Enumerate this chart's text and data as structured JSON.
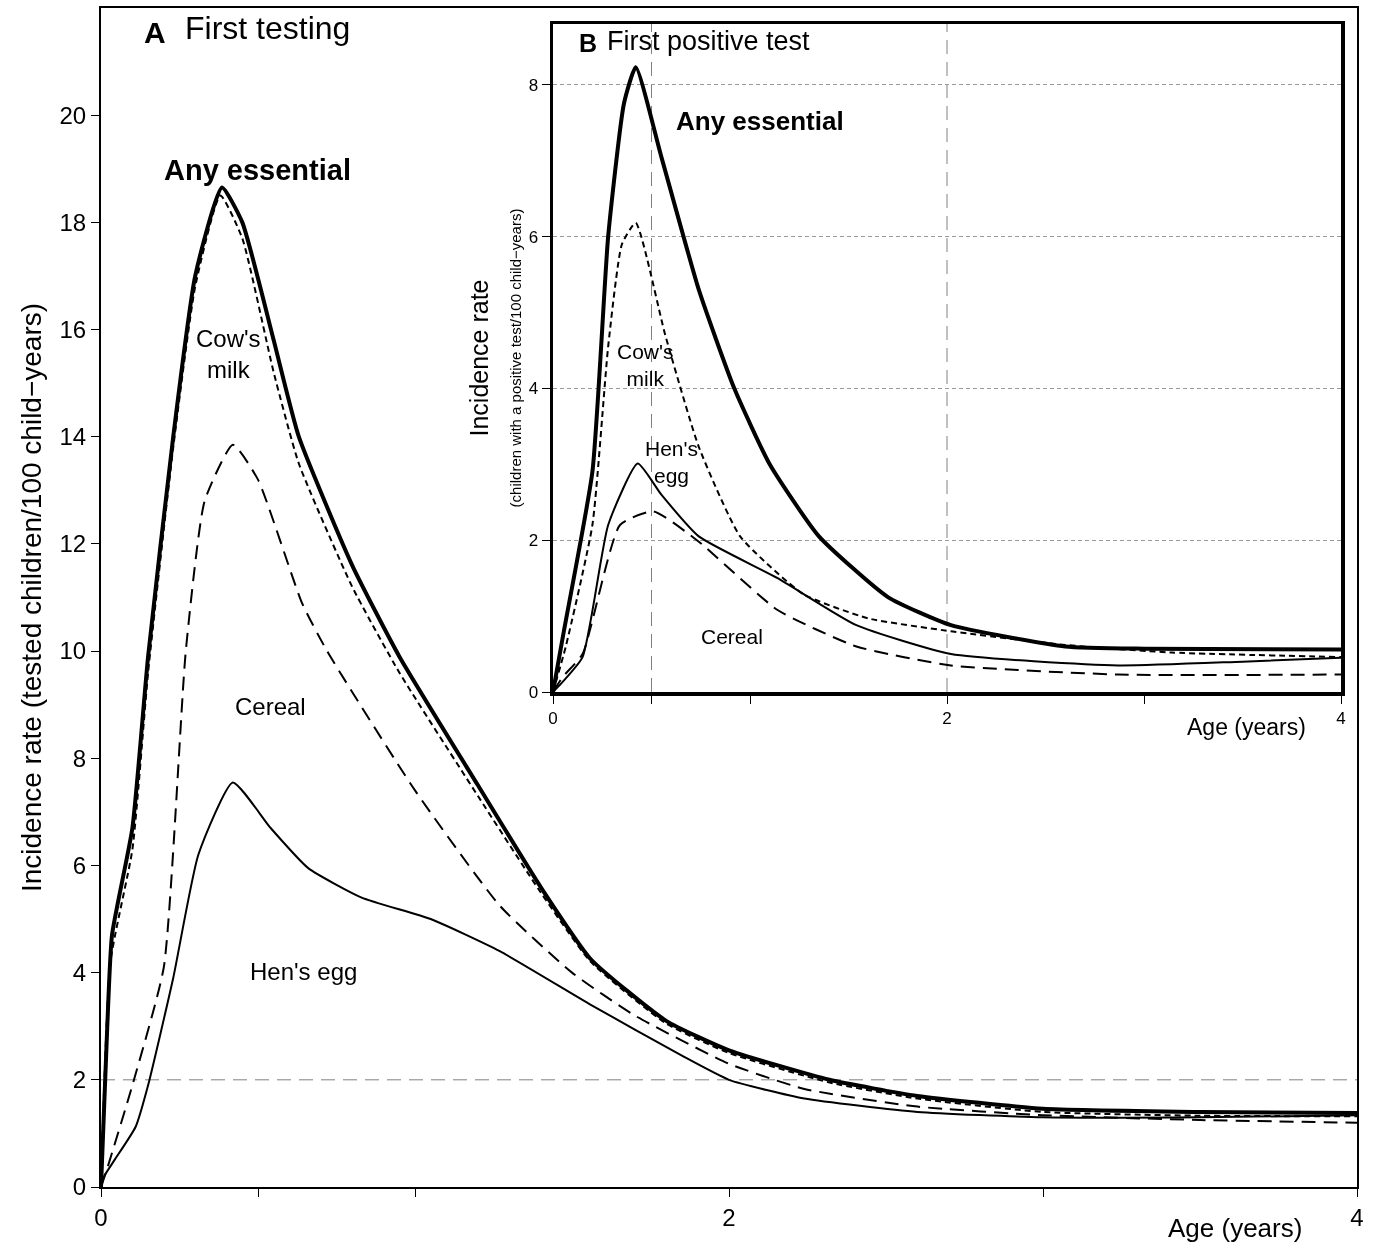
{
  "chart_data": [
    {
      "type": "line",
      "title": "First testing",
      "ylabel": "Incidence rate (tested children/100 child−years)",
      "xlabel": "Age (years)",
      "xlim": [
        0,
        4
      ],
      "xticks": [
        0,
        {
          "value": 0.5,
          "label": null
        },
        {
          "value": 1,
          "label": null
        },
        2,
        {
          "value": 3,
          "label": null
        },
        4
      ],
      "ylim": [
        0,
        22
      ],
      "yticks": [
        0,
        2,
        4,
        6,
        8,
        10,
        12,
        14,
        16,
        18,
        20
      ],
      "grid": false,
      "ref_lines": [
        {
          "axis": "y",
          "value": 2,
          "color": "#808080",
          "line_style": "dashed"
        }
      ],
      "annotations": [
        "A"
      ],
      "series": [
        {
          "name": "Any essential",
          "color": "#000000",
          "line_style": "solid",
          "x": [
            0,
            0.02,
            0.035,
            0.1,
            0.15,
            0.23,
            0.3,
            0.385,
            0.45,
            0.55,
            0.63,
            0.8,
            0.95,
            1.2,
            1.4,
            1.56,
            1.8,
            2.0,
            2.32,
            2.6,
            3.0,
            3.5,
            4.0
          ],
          "values": [
            0,
            3.0,
            4.7,
            6.7,
            9.9,
            14.0,
            17.0,
            18.65,
            18.0,
            15.8,
            14.0,
            11.6,
            9.9,
            7.5,
            5.6,
            4.25,
            3.1,
            2.55,
            2.0,
            1.7,
            1.46,
            1.4,
            1.38
          ]
        },
        {
          "name": "Cow's\nmilk",
          "color": "#000000",
          "line_style": "dotted",
          "x": [
            0,
            0.03,
            0.1,
            0.15,
            0.23,
            0.3,
            0.38,
            0.45,
            0.55,
            0.63,
            0.8,
            0.95,
            1.2,
            1.4,
            1.56,
            1.8,
            2.0,
            2.32,
            2.6,
            3.0,
            3.5,
            4.0
          ],
          "values": [
            0,
            4.2,
            6.3,
            9.6,
            13.8,
            16.8,
            18.5,
            17.7,
            15.2,
            13.5,
            11.2,
            9.6,
            7.3,
            5.5,
            4.2,
            3.05,
            2.5,
            1.95,
            1.65,
            1.4,
            1.33,
            1.32
          ]
        },
        {
          "name": "Cereal",
          "color": "#000000",
          "line_style": "dashed",
          "x": [
            0,
            0.02,
            0.1,
            0.2,
            0.27,
            0.33,
            0.42,
            0.5,
            0.64,
            0.72,
            1.0,
            1.27,
            1.5,
            1.7,
            2.0,
            2.24,
            2.6,
            3.0,
            3.5,
            4.0
          ],
          "values": [
            0,
            0.35,
            1.9,
            4.1,
            10.0,
            12.8,
            13.85,
            13.2,
            10.9,
            10.0,
            7.4,
            5.25,
            4.0,
            3.2,
            2.3,
            1.83,
            1.5,
            1.34,
            1.25,
            1.2
          ]
        },
        {
          "name": "Hen's egg",
          "color": "#000000",
          "line_style": "solid",
          "x": [
            0,
            0.01,
            0.045,
            0.11,
            0.15,
            0.23,
            0.31,
            0.42,
            0.54,
            0.66,
            0.83,
            1.05,
            1.27,
            1.56,
            1.85,
            2.0,
            2.24,
            2.6,
            3.0,
            3.5,
            4.0
          ],
          "values": [
            0,
            0.2,
            0.52,
            1.12,
            1.9,
            3.9,
            6.2,
            7.55,
            6.7,
            5.95,
            5.4,
            5.0,
            4.4,
            3.4,
            2.45,
            2.0,
            1.65,
            1.4,
            1.3,
            1.3,
            1.34
          ]
        }
      ]
    },
    {
      "type": "line",
      "title": "First positive test",
      "ylabel": "Incidence rate\n(children with a positive test/100 child−years)",
      "xlabel": "Age (years)",
      "xlim": [
        0,
        4
      ],
      "xticks": [
        0,
        {
          "value": 0.5,
          "label": null
        },
        {
          "value": 1,
          "label": null
        },
        2,
        {
          "value": 3,
          "label": null
        },
        4
      ],
      "ylim": [
        0,
        8.8
      ],
      "yticks": [
        0,
        2,
        4,
        6,
        8
      ],
      "grid": "y",
      "ref_lines": [
        {
          "axis": "x",
          "value": 0.5,
          "color": "#808080",
          "line_style": "dashed"
        },
        {
          "axis": "x",
          "value": 2,
          "color": "#808080",
          "line_style": "dashed"
        }
      ],
      "annotations": [
        "B"
      ],
      "series": [
        {
          "name": "Any essential",
          "color": "#000000",
          "line_style": "solid",
          "x": [
            0,
            0.055,
            0.2,
            0.28,
            0.36,
            0.42,
            0.55,
            0.74,
            0.92,
            1.1,
            1.35,
            1.7,
            2.02,
            2.6,
            3.0,
            4.0
          ],
          "values": [
            0,
            0.8,
            2.9,
            6.0,
            7.75,
            8.23,
            7.05,
            5.3,
            4.0,
            3.0,
            2.05,
            1.25,
            0.88,
            0.6,
            0.57,
            0.56
          ]
        },
        {
          "name": "Cow's\nmilk",
          "color": "#000000",
          "line_style": "dotted",
          "x": [
            0,
            0.065,
            0.2,
            0.28,
            0.35,
            0.42,
            0.57,
            0.74,
            0.95,
            1.27,
            1.6,
            2.02,
            2.6,
            3.14,
            4.0
          ],
          "values": [
            0,
            0.6,
            2.2,
            4.55,
            5.9,
            6.18,
            4.7,
            3.23,
            2.05,
            1.29,
            0.97,
            0.8,
            0.62,
            0.52,
            0.46
          ]
        },
        {
          "name": "Cereal",
          "color": "#000000",
          "line_style": "dashed",
          "x": [
            0,
            0.05,
            0.15,
            0.34,
            0.51,
            0.74,
            1.14,
            1.54,
            2.02,
            2.87,
            4.0
          ],
          "values": [
            0,
            0.2,
            0.5,
            2.2,
            2.38,
            1.98,
            1.08,
            0.6,
            0.35,
            0.23,
            0.23
          ]
        },
        {
          "name": "Hen's\negg",
          "color": "#000000",
          "line_style": "solid",
          "x": [
            0,
            0.03,
            0.15,
            0.28,
            0.43,
            0.55,
            0.74,
            1.14,
            1.54,
            2.02,
            2.87,
            3.5,
            4.0
          ],
          "values": [
            0,
            0.08,
            0.46,
            2.2,
            3.01,
            2.6,
            2.05,
            1.5,
            0.88,
            0.5,
            0.35,
            0.4,
            0.45
          ]
        }
      ]
    }
  ]
}
